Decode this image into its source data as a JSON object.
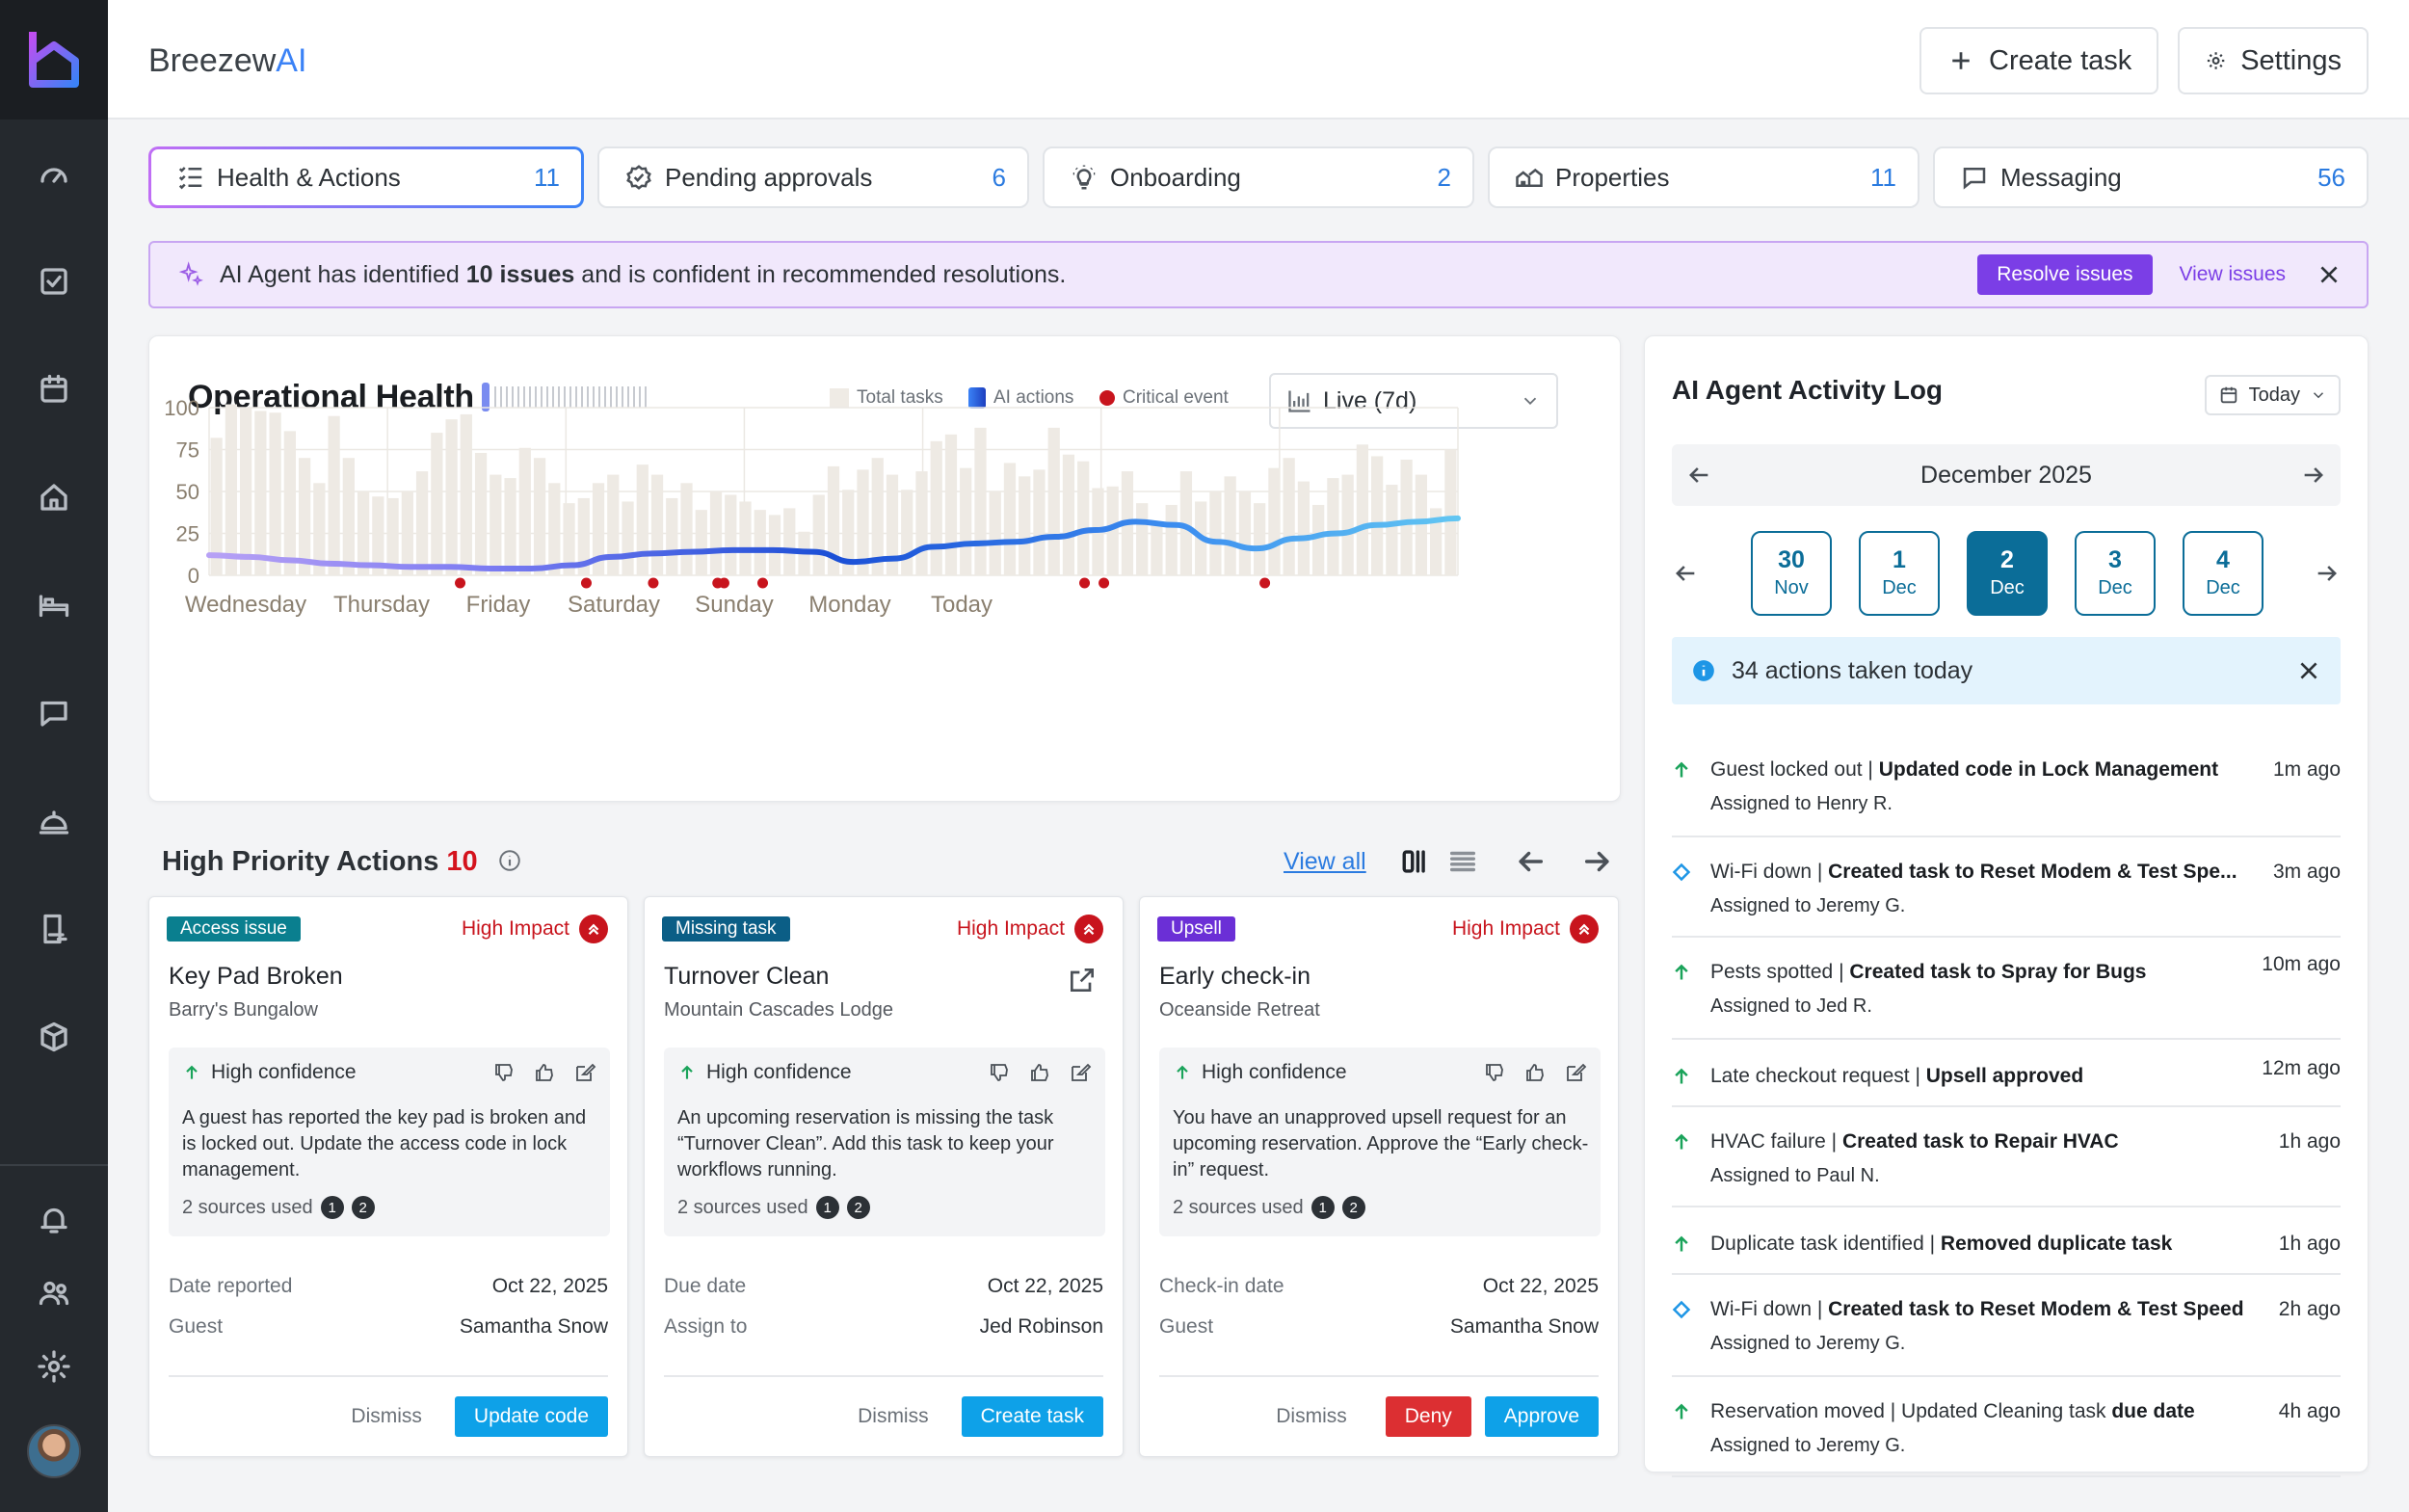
{
  "app": {
    "brand_prefix": "Breezew",
    "brand_suffix": "AI"
  },
  "topbar": {
    "create_task": "Create task",
    "settings": "Settings"
  },
  "sidebar": {
    "items": [
      "dashboard-icon",
      "tasks-icon",
      "calendar-icon",
      "home-icon",
      "bed-icon",
      "chat-icon",
      "service-bell-icon",
      "checklist-icon",
      "package-icon",
      "bell-icon",
      "users-icon",
      "gear-icon"
    ]
  },
  "tabs": [
    {
      "label": "Health & Actions",
      "count": "11",
      "icon": "health-list-icon"
    },
    {
      "label": "Pending approvals",
      "count": "6",
      "icon": "badge-check-icon"
    },
    {
      "label": "Onboarding",
      "count": "2",
      "icon": "lightbulb-icon"
    },
    {
      "label": "Properties",
      "count": "11",
      "icon": "houses-icon"
    },
    {
      "label": "Messaging",
      "count": "56",
      "icon": "message-icon"
    }
  ],
  "banner": {
    "pre": "AI Agent has identified ",
    "bold": "10 issues",
    "post": " and is confident in recommended resolutions.",
    "resolve": "Resolve issues",
    "view": "View issues"
  },
  "colors": {
    "accent_blue": "#2b7be0",
    "accent_purple": "#7b3ee6",
    "critical_red": "#c8141d",
    "teal": "#0b6d98"
  },
  "health": {
    "title": "Operational Health",
    "select": "Live (7d)",
    "legend": {
      "total": "Total tasks",
      "ai": "AI actions",
      "critical": "Critical event"
    }
  },
  "chart_data": {
    "type": "bar",
    "title": "Operational Health",
    "ylim": [
      0,
      100
    ],
    "yticks": [
      100,
      75,
      50,
      25,
      0
    ],
    "xlabels": [
      "Wednesday",
      "Thursday",
      "Friday",
      "Saturday",
      "Sunday",
      "Monday",
      "Today"
    ],
    "grid": true,
    "legend_position": "top-right",
    "series": [
      {
        "name": "Total tasks",
        "values": [
          82,
          102,
          100,
          98,
          97,
          86,
          70,
          55,
          95,
          70,
          50,
          47,
          46,
          50,
          62,
          85,
          93,
          96,
          73,
          60,
          58,
          76,
          70,
          55,
          43,
          46,
          55,
          60,
          44,
          66,
          60,
          46,
          55,
          39,
          50,
          48,
          44,
          39,
          36,
          40,
          26,
          48,
          65,
          51,
          63,
          70,
          60,
          51,
          62,
          80,
          84,
          64,
          88,
          50,
          67,
          59,
          63,
          88,
          72,
          68,
          52,
          53,
          62,
          43,
          32,
          42,
          62,
          44,
          50,
          59,
          50,
          43,
          64,
          70,
          56,
          42,
          58,
          60,
          78,
          71,
          54,
          69,
          60,
          40,
          75
        ]
      },
      {
        "name": "AI actions",
        "values": [
          12,
          11,
          9,
          7,
          6,
          5,
          5,
          4,
          4,
          6,
          11,
          13,
          14,
          15,
          15,
          14,
          8,
          10,
          17,
          19,
          20,
          23,
          27,
          32,
          30,
          20,
          16,
          22,
          25,
          30,
          32,
          34
        ]
      }
    ],
    "critical_events_x": [
      1.95,
      2.93,
      3.45,
      3.95,
      4.0,
      4.3,
      6.8,
      6.95,
      8.2
    ]
  },
  "actions": {
    "title": "High Priority Actions ",
    "count": "10",
    "view_all": "View all",
    "cards": [
      {
        "tag": "Access issue",
        "tag_color": "#0a7f8f",
        "impact": "High Impact",
        "title": "Key Pad Broken",
        "property": "Barry's Bungalow",
        "confidence": "High confidence",
        "text": "A guest has reported the key pad is broken and is locked out. Update the access code in lock management.",
        "sources": "2 sources used",
        "k1": "Date reported",
        "v1": "Oct 22, 2025",
        "k2": "Guest",
        "v2": "Samantha Snow",
        "dismiss": "Dismiss",
        "primary": "Update code"
      },
      {
        "tag": "Missing task",
        "tag_color": "#0b5e86",
        "impact": "High Impact",
        "title": "Turnover Clean",
        "property": "Mountain Cascades Lodge",
        "confidence": "High confidence",
        "text": "An upcoming reservation is missing the task “Turnover Clean”. Add this task to keep your workflows running.",
        "sources": "2 sources used",
        "k1": "Due date",
        "v1": "Oct 22, 2025",
        "k2": "Assign to",
        "v2": "Jed Robinson",
        "dismiss": "Dismiss",
        "primary": "Create task"
      },
      {
        "tag": "Upsell",
        "tag_color": "#6b2fd6",
        "impact": "High Impact",
        "title": "Early check-in",
        "property": "Oceanside Retreat",
        "confidence": "High confidence",
        "text": "You have an unapproved upsell request for an upcoming reservation. Approve the “Early check-in” request.",
        "sources": "2 sources used",
        "k1": "Check-in date",
        "v1": "Oct 22, 2025",
        "k2": "Guest",
        "v2": "Samantha Snow",
        "dismiss": "Dismiss",
        "deny": "Deny",
        "primary": "Approve"
      }
    ]
  },
  "log": {
    "title": "AI Agent Activity Log",
    "filter": "Today",
    "month": "December 2025",
    "days": [
      {
        "d": "30",
        "m": "Nov"
      },
      {
        "d": "1",
        "m": "Dec"
      },
      {
        "d": "2",
        "m": "Dec"
      },
      {
        "d": "3",
        "m": "Dec"
      },
      {
        "d": "4",
        "m": "Dec"
      }
    ],
    "info": "34 actions taken today",
    "items": [
      {
        "icon": "arrow-up-icon",
        "main_pre": "Guest locked out | ",
        "main_bold": "Updated code in Lock Management",
        "main_post": "",
        "sub": "Assigned to Henry R.",
        "time": "1m ago"
      },
      {
        "icon": "diamond-icon",
        "main_pre": "Wi-Fi down | ",
        "main_bold": "Created task to Reset Modem & Test Spe...",
        "main_post": "",
        "sub": "Assigned to Jeremy G.",
        "time": "3m ago"
      },
      {
        "icon": "arrow-up-icon",
        "main_pre": "Pests spotted | ",
        "main_bold": "Created task to Spray for Bugs",
        "main_post": "",
        "sub": "Assigned to Jed R.",
        "time": "10m ago"
      },
      {
        "icon": "arrow-up-icon",
        "main_pre": "Late checkout request | ",
        "main_bold": "Upsell approved",
        "main_post": "",
        "sub": "",
        "time": "12m ago"
      },
      {
        "icon": "arrow-up-icon",
        "main_pre": "HVAC failure | ",
        "main_bold": "Created task to Repair HVAC",
        "main_post": "",
        "sub": "Assigned to Paul N.",
        "time": "1h ago"
      },
      {
        "icon": "arrow-up-icon",
        "main_pre": "Duplicate task identified | ",
        "main_bold": "Removed duplicate task",
        "main_post": "",
        "sub": "",
        "time": "1h ago"
      },
      {
        "icon": "diamond-icon",
        "main_pre": "Wi-Fi down | ",
        "main_bold": "Created task to Reset Modem & Test Speed",
        "main_post": "",
        "sub": "Assigned to Jeremy G.",
        "time": "2h ago"
      },
      {
        "icon": "arrow-up-icon",
        "main_pre": "Reservation moved | Updated Cleaning task ",
        "main_bold": "due date",
        "main_post": "",
        "sub": "Assigned to Jeremy G.",
        "time": "4h ago"
      }
    ]
  }
}
